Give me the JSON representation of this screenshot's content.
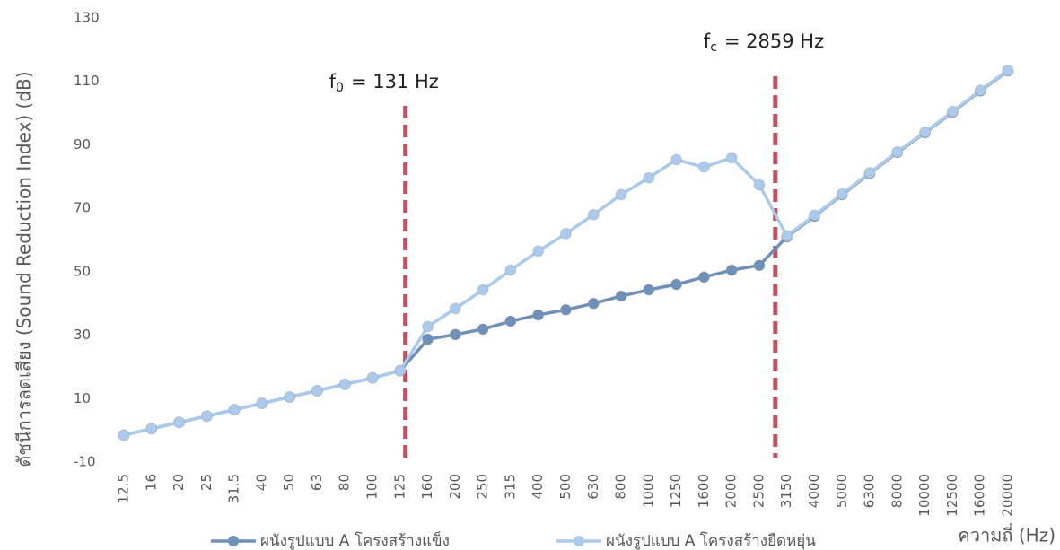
{
  "chart_data": {
    "type": "line",
    "y_label": "ดัชนีการลดเสียง (Sound Reduction Index) (dB)",
    "x_label": "ความถี่ (Hz)",
    "categories": [
      "12.5",
      "16",
      "20",
      "25",
      "31.5",
      "40",
      "50",
      "63",
      "80",
      "100",
      "125",
      "160",
      "200",
      "250",
      "315",
      "400",
      "500",
      "630",
      "800",
      "1000",
      "1250",
      "1600",
      "2000",
      "2500",
      "3150",
      "4000",
      "5000",
      "6300",
      "8000",
      "10000",
      "12500",
      "16000",
      "20000"
    ],
    "series": [
      {
        "name": "ผนังรูปแบบ A โครงสร้างแข็ง",
        "color": "#6f91b9",
        "values": [
          -1.5,
          0.5,
          2.5,
          4.5,
          6.5,
          8.5,
          10.5,
          12.5,
          14.5,
          16.5,
          18.8,
          28.7,
          30.2,
          31.9,
          34.4,
          36.4,
          38,
          40,
          42.3,
          44.3,
          46,
          48.3,
          50.5,
          52,
          61,
          67.5,
          74.3,
          81,
          87.6,
          93.8,
          100.3,
          107,
          113.3
        ]
      },
      {
        "name": "ผนังรูปแบบ A โครงสร้างยืดหยุ่น",
        "color": "#abcaec",
        "values": [
          -1.5,
          0.5,
          2.5,
          4.5,
          6.5,
          8.5,
          10.5,
          12.5,
          14.5,
          16.5,
          18.8,
          32.7,
          38.4,
          44.3,
          50.5,
          56.5,
          62,
          68,
          74.3,
          79.6,
          85.3,
          83,
          85.9,
          77.4,
          61.3,
          67.8,
          74.5,
          81.2,
          87.8,
          94,
          100.5,
          107.2,
          113.5
        ]
      }
    ],
    "ylim": [
      -10,
      130
    ],
    "yticks": [
      -10,
      10,
      30,
      50,
      70,
      90,
      110,
      130
    ],
    "annotations": [
      {
        "symbol": "f",
        "subscript": "0",
        "text": "= 131 Hz",
        "x": 131,
        "color": "#c8505e"
      },
      {
        "symbol": "f",
        "subscript": "c",
        "text": "= 2859 Hz",
        "x": 2859,
        "color": "#c8505e"
      }
    ]
  }
}
